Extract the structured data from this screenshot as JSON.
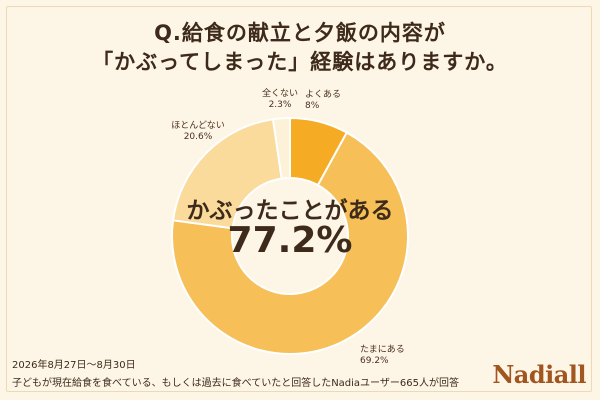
{
  "header": {
    "title_line1": "Q.給食の献立と夕飯の内容が",
    "title_line2": "「かぶってしまった」経験はありますか。"
  },
  "chart_data": {
    "type": "pie",
    "variant": "donut",
    "categories": [
      "よくある",
      "たまにある",
      "ほとんどない",
      "全くない"
    ],
    "values": [
      8,
      69.2,
      20.6,
      2.3
    ],
    "value_labels": [
      "8%",
      "69.2%",
      "20.6%",
      "2.3%"
    ],
    "colors": [
      "#f5ab23",
      "#f6bf58",
      "#fadb9c",
      "#fdf1d8"
    ],
    "center_label": "かぶったことがある",
    "center_value": "77.2%"
  },
  "footer": {
    "line1": "2026年8月27日〜8月30日",
    "line2": "子どもが現在給食を食べている、もしくは過去に食べていたと回答したNadiaユーザー665人が回答"
  },
  "brand": {
    "logo_text": "Nadiall"
  }
}
